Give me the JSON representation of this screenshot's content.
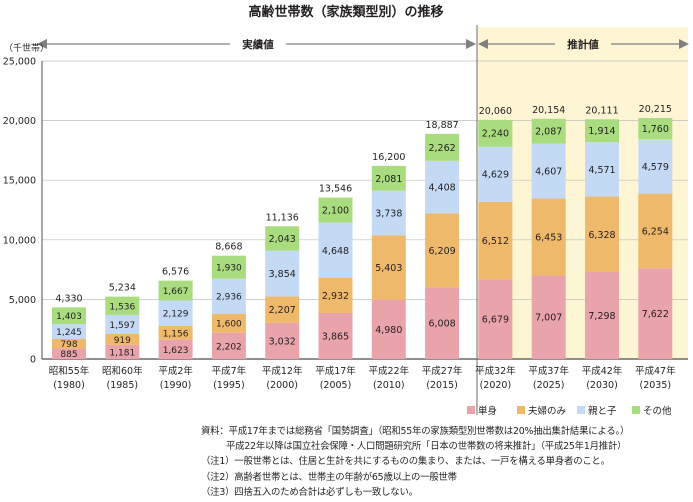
{
  "chart_data": {
    "type": "bar",
    "stacked": true,
    "title": "高齢世帯数（家族類型別）の推移",
    "ylabel": "（千世帯）",
    "ylim": [
      0,
      25000
    ],
    "yticks": [
      "0",
      "5,000",
      "10,000",
      "15,000",
      "20,000",
      "25,000"
    ],
    "categories": [
      "昭和55年",
      "昭和60年",
      "平成2年",
      "平成7年",
      "平成12年",
      "平成17年",
      "平成22年",
      "平成27年",
      "平成32年",
      "平成37年",
      "平成42年",
      "平成47年"
    ],
    "category_years": [
      "(1980)",
      "(1985)",
      "(1990)",
      "(1995)",
      "(2000)",
      "(2005)",
      "(2010)",
      "(2015)",
      "(2020)",
      "(2025)",
      "(2030)",
      "(2035)"
    ],
    "series": [
      {
        "name": "単身",
        "color": "#e9a3aa",
        "values": [
          885,
          1181,
          1623,
          2202,
          3032,
          3865,
          4980,
          6008,
          6679,
          7007,
          7298,
          7622
        ]
      },
      {
        "name": "夫婦のみ",
        "color": "#efb96c",
        "values": [
          798,
          919,
          1156,
          1600,
          2207,
          2932,
          5403,
          6209,
          6512,
          6453,
          6328,
          6254
        ]
      },
      {
        "name": "親と子",
        "color": "#c3d9f4",
        "values": [
          1245,
          1597,
          2129,
          2936,
          3854,
          4648,
          3738,
          4408,
          4629,
          4607,
          4571,
          4579
        ]
      },
      {
        "name": "その他",
        "color": "#a9dc7e",
        "values": [
          1403,
          1536,
          1667,
          1930,
          2043,
          2100,
          2081,
          2262,
          2240,
          2087,
          1914,
          1760
        ]
      }
    ],
    "totals": [
      4330,
      5234,
      6576,
      8668,
      11136,
      13546,
      16200,
      18887,
      20060,
      20154,
      20111,
      20215
    ],
    "actual_label": "実績値",
    "projection_label": "推計値",
    "projection_start_index": 8,
    "projection_bg": "#fdf5d4",
    "grid": true,
    "legend_position": "bottom-right"
  },
  "notes": [
    "資料：平成17年までは総務省「国勢調査」（昭和55年の家族類型別世帯数は20%抽出集計結果による。）",
    "平成22年以降は国立社会保障・人口問題研究所「日本の世帯数の将来推計」（平成25年1月推計）",
    "（注1）一般世帯とは、住居と生計を共にするものの集まり、または、一戸を構える単身者のこと。",
    "（注2）高齢者世帯とは、世帯主の年齢が65歳以上の一般世帯",
    "（注3）四捨五入のため合計は必ずしも一致しない。"
  ]
}
